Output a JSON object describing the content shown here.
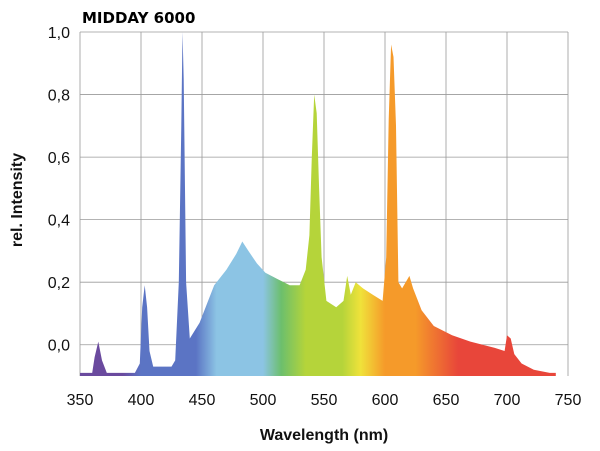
{
  "chart_data": {
    "type": "area",
    "title": "MIDDAY 6000",
    "xlabel": "Wavelength (nm)",
    "ylabel": "rel. Intensity",
    "xlim": [
      350,
      750
    ],
    "ylim": [
      -0.1,
      1.0
    ],
    "x_ticks": [
      "350",
      "400",
      "450",
      "500",
      "550",
      "600",
      "650",
      "700",
      "750"
    ],
    "y_ticks": [
      "0,0",
      "0,2",
      "0,4",
      "0,6",
      "0,8",
      "1,0"
    ],
    "grid": true,
    "series": [
      {
        "points": [
          [
            350,
            -0.09
          ],
          [
            360,
            -0.09
          ],
          [
            362,
            -0.04
          ],
          [
            365,
            0.01
          ],
          [
            368,
            -0.05
          ],
          [
            372,
            -0.09
          ],
          [
            395,
            -0.09
          ],
          [
            399,
            -0.06
          ],
          [
            401,
            0.12
          ],
          [
            403,
            0.19
          ],
          [
            405,
            0.12
          ],
          [
            407,
            -0.02
          ],
          [
            410,
            -0.07
          ],
          [
            425,
            -0.07
          ],
          [
            428,
            -0.05
          ],
          [
            431,
            0.2
          ],
          [
            433,
            0.7
          ],
          [
            434,
            1.0
          ],
          [
            435,
            0.85
          ],
          [
            437,
            0.2
          ],
          [
            440,
            0.02
          ],
          [
            448,
            0.07
          ],
          [
            455,
            0.14
          ],
          [
            460,
            0.19
          ],
          [
            470,
            0.24
          ],
          [
            478,
            0.29
          ],
          [
            483,
            0.33
          ],
          [
            488,
            0.3
          ],
          [
            495,
            0.26
          ],
          [
            502,
            0.23
          ],
          [
            512,
            0.21
          ],
          [
            522,
            0.19
          ],
          [
            530,
            0.19
          ],
          [
            535,
            0.24
          ],
          [
            538,
            0.35
          ],
          [
            540,
            0.6
          ],
          [
            542,
            0.8
          ],
          [
            544,
            0.74
          ],
          [
            546,
            0.5
          ],
          [
            548,
            0.28
          ],
          [
            552,
            0.14
          ],
          [
            560,
            0.12
          ],
          [
            566,
            0.14
          ],
          [
            569,
            0.22
          ],
          [
            572,
            0.16
          ],
          [
            576,
            0.2
          ],
          [
            582,
            0.18
          ],
          [
            590,
            0.16
          ],
          [
            598,
            0.14
          ],
          [
            601,
            0.28
          ],
          [
            603,
            0.72
          ],
          [
            605,
            0.96
          ],
          [
            607,
            0.92
          ],
          [
            609,
            0.7
          ],
          [
            611,
            0.2
          ],
          [
            614,
            0.18
          ],
          [
            620,
            0.22
          ],
          [
            623,
            0.18
          ],
          [
            630,
            0.11
          ],
          [
            640,
            0.06
          ],
          [
            655,
            0.03
          ],
          [
            670,
            0.01
          ],
          [
            690,
            -0.01
          ],
          [
            698,
            -0.02
          ],
          [
            700,
            0.03
          ],
          [
            703,
            0.02
          ],
          [
            706,
            -0.03
          ],
          [
            712,
            -0.06
          ],
          [
            722,
            -0.08
          ],
          [
            735,
            -0.09
          ],
          [
            740,
            -0.09
          ]
        ]
      }
    ],
    "peaks": [
      {
        "x": 365,
        "y": 0.01
      },
      {
        "x": 404,
        "y": 0.19
      },
      {
        "x": 435,
        "y": 1.0
      },
      {
        "x": 485,
        "y": 0.33
      },
      {
        "x": 543,
        "y": 0.8
      },
      {
        "x": 606,
        "y": 0.96
      },
      {
        "x": 622,
        "y": 0.22
      },
      {
        "x": 701,
        "y": 0.03
      }
    ],
    "colors": {
      "violet": "#6a4a9e",
      "blue": "#5b74c4",
      "light_blue": "#8cc4e4",
      "green": "#6cbf6c",
      "yellow_green": "#b5d43a",
      "yellow": "#f0e23a",
      "orange": "#f59a2a",
      "red": "#e8463a",
      "grid": "#9a9a9a"
    }
  }
}
